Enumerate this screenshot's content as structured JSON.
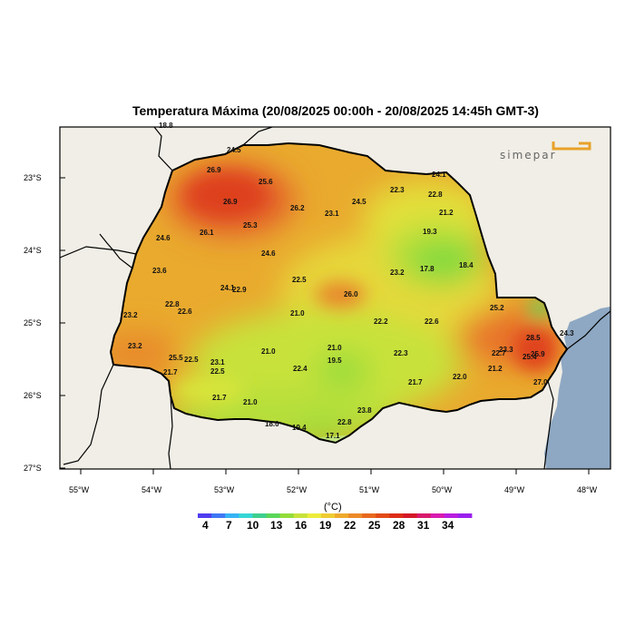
{
  "title": "Temperatura Máxima (20/08/2025 00:00h - 20/08/2025 14:45h GMT-3)",
  "logo_text": "simepar",
  "axes": {
    "lat_labels": [
      "23°S",
      "24°S",
      "25°S",
      "26°S",
      "27°S"
    ],
    "lon_labels": [
      "55°W",
      "54°W",
      "53°W",
      "52°W",
      "51°W",
      "50°W",
      "49°W",
      "48°W"
    ]
  },
  "colorbar": {
    "unit": "(°C)",
    "ticks": [
      "4",
      "7",
      "10",
      "13",
      "16",
      "19",
      "22",
      "25",
      "28",
      "31",
      "34"
    ],
    "colors": [
      "#4f3df0",
      "#3f78f5",
      "#36b3f5",
      "#37d6d6",
      "#3ecf8f",
      "#5ad65a",
      "#93dc3a",
      "#c8e23a",
      "#ecec3c",
      "#efcc32",
      "#eeaa2c",
      "#ec8a28",
      "#e8691e",
      "#e34a18",
      "#dc2c18",
      "#d41828",
      "#d81a6c",
      "#d91cb0",
      "#b81ee0",
      "#9a20ee"
    ]
  },
  "colors": {
    "ocean": "#8ea8c3",
    "land": "#f0eee6",
    "frame": "#000000"
  },
  "stations": [
    {
      "value": "18.8"
    },
    {
      "value": "24.5"
    },
    {
      "value": "26.9"
    },
    {
      "value": "25.6"
    },
    {
      "value": "26.9"
    },
    {
      "value": "26.2"
    },
    {
      "value": "23.1"
    },
    {
      "value": "24.5"
    },
    {
      "value": "22.3"
    },
    {
      "value": "22.8"
    },
    {
      "value": "24.1"
    },
    {
      "value": "21.2"
    },
    {
      "value": "26.1"
    },
    {
      "value": "25.3"
    },
    {
      "value": "19.3"
    },
    {
      "value": "24.6"
    },
    {
      "value": "24.6"
    },
    {
      "value": "17.8"
    },
    {
      "value": "18.4"
    },
    {
      "value": "23.6"
    },
    {
      "value": "23.2"
    },
    {
      "value": "22.5"
    },
    {
      "value": "24.1"
    },
    {
      "value": "22.9"
    },
    {
      "value": "26.0"
    },
    {
      "value": "22.8"
    },
    {
      "value": "22.6"
    },
    {
      "value": "21.0"
    },
    {
      "value": "25.2"
    },
    {
      "value": "23.2"
    },
    {
      "value": "22.2"
    },
    {
      "value": "22.6"
    },
    {
      "value": "28.5"
    },
    {
      "value": "24.3"
    },
    {
      "value": "23.2"
    },
    {
      "value": "21.0"
    },
    {
      "value": "21.0"
    },
    {
      "value": "22.3"
    },
    {
      "value": "22.7"
    },
    {
      "value": "23.3"
    },
    {
      "value": "25.5"
    },
    {
      "value": "22.5"
    },
    {
      "value": "23.1"
    },
    {
      "value": "19.5"
    },
    {
      "value": "25.4"
    },
    {
      "value": "25.9"
    },
    {
      "value": "21.7"
    },
    {
      "value": "22.5"
    },
    {
      "value": "22.4"
    },
    {
      "value": "21.2"
    },
    {
      "value": "22.0"
    },
    {
      "value": "21.7"
    },
    {
      "value": "27.0"
    },
    {
      "value": "21.7"
    },
    {
      "value": "21.0"
    },
    {
      "value": "23.8"
    },
    {
      "value": "18.0"
    },
    {
      "value": "19.4"
    },
    {
      "value": "22.8"
    },
    {
      "value": "17.1"
    }
  ]
}
